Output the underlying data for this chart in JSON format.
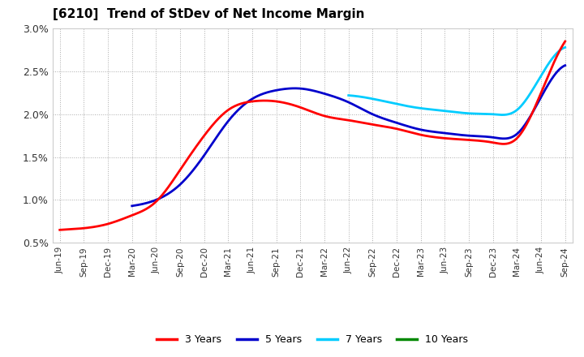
{
  "title": "[6210]  Trend of StDev of Net Income Margin",
  "ylim": [
    0.005,
    0.03
  ],
  "yticks": [
    0.005,
    0.01,
    0.015,
    0.02,
    0.025,
    0.03
  ],
  "ytick_labels": [
    "0.5%",
    "1.0%",
    "1.5%",
    "2.0%",
    "2.5%",
    "3.0%"
  ],
  "background_color": "#ffffff",
  "plot_bg_color": "#ffffff",
  "line_colors": {
    "3yr": "#ff0000",
    "5yr": "#0000cc",
    "7yr": "#00ccff",
    "10yr": "#008800"
  },
  "line_width": 2.0,
  "legend": [
    "3 Years",
    "5 Years",
    "7 Years",
    "10 Years"
  ],
  "x_labels": [
    "Jun-19",
    "Sep-19",
    "Dec-19",
    "Mar-20",
    "Jun-20",
    "Sep-20",
    "Dec-20",
    "Mar-21",
    "Jun-21",
    "Sep-21",
    "Dec-21",
    "Mar-22",
    "Jun-22",
    "Sep-22",
    "Dec-22",
    "Mar-23",
    "Jun-23",
    "Sep-23",
    "Dec-23",
    "Mar-24",
    "Jun-24",
    "Sep-24"
  ],
  "series_3yr": [
    0.0065,
    0.0067,
    0.0072,
    0.0082,
    0.0098,
    0.0135,
    0.0175,
    0.0205,
    0.0215,
    0.0215,
    0.0208,
    0.0198,
    0.0193,
    0.0188,
    0.0183,
    0.0176,
    0.0172,
    0.017,
    0.0167,
    0.0172,
    0.0225,
    0.0285
  ],
  "series_5yr": [
    null,
    null,
    null,
    0.0093,
    0.01,
    0.0118,
    0.0152,
    0.0192,
    0.0218,
    0.0228,
    0.023,
    0.0224,
    0.0214,
    0.02,
    0.019,
    0.0182,
    0.0178,
    0.0175,
    0.0173,
    0.0177,
    0.022,
    0.0257
  ],
  "series_7yr": [
    null,
    null,
    null,
    null,
    null,
    null,
    null,
    null,
    null,
    null,
    null,
    null,
    0.0222,
    0.0218,
    0.0212,
    0.0207,
    0.0204,
    0.0201,
    0.02,
    0.0205,
    0.0245,
    0.0278
  ],
  "series_10yr": [
    null,
    null,
    null,
    null,
    null,
    null,
    null,
    null,
    null,
    null,
    null,
    null,
    null,
    null,
    null,
    null,
    null,
    null,
    null,
    null,
    null,
    null
  ]
}
